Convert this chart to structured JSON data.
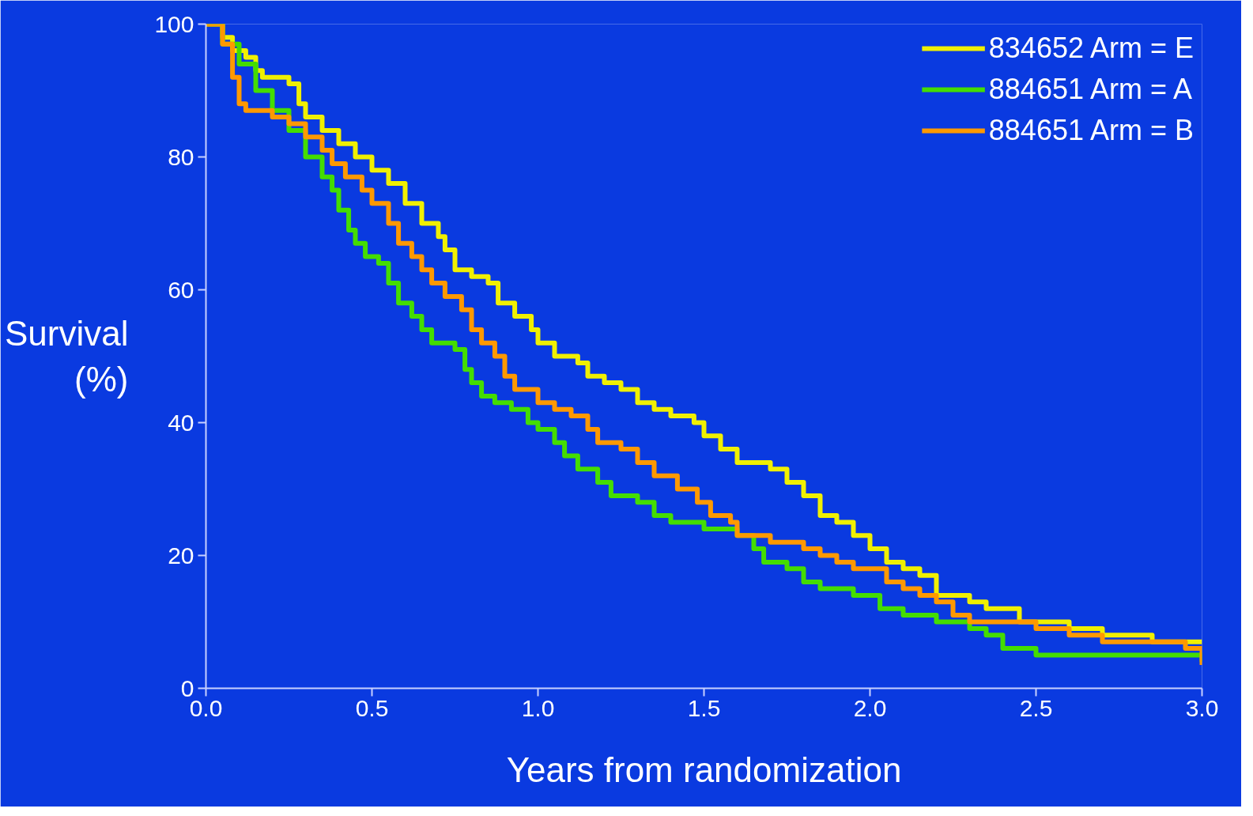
{
  "chart_data": {
    "type": "step",
    "xlabel": "Years from randomization",
    "ylabel": "Survival (%)",
    "xlim": [
      0,
      3.0
    ],
    "ylim": [
      0,
      100
    ],
    "xticks": [
      {
        "value": 0,
        "label": "0.0"
      },
      {
        "value": 0.5,
        "label": "0.5"
      },
      {
        "value": 1,
        "label": "1.0"
      },
      {
        "value": 1.5,
        "label": "1.5"
      },
      {
        "value": 2,
        "label": "2.0"
      },
      {
        "value": 2.5,
        "label": "2.5"
      },
      {
        "value": 3,
        "label": "3.0"
      }
    ],
    "yticks": [
      0,
      20,
      40,
      60,
      80,
      100
    ],
    "grid": false,
    "legend": "top right",
    "line_style": "solid",
    "marker": "none",
    "series": [
      {
        "name": "834652 Arm = E",
        "color": "#f0f000",
        "x": [
          0,
          0.05,
          0.08,
          0.12,
          0.15,
          0.17,
          0.25,
          0.28,
          0.3,
          0.35,
          0.4,
          0.45,
          0.5,
          0.55,
          0.6,
          0.65,
          0.7,
          0.72,
          0.75,
          0.8,
          0.85,
          0.88,
          0.93,
          0.98,
          1.0,
          1.05,
          1.12,
          1.15,
          1.2,
          1.25,
          1.3,
          1.35,
          1.4,
          1.47,
          1.5,
          1.55,
          1.6,
          1.7,
          1.75,
          1.8,
          1.85,
          1.9,
          1.95,
          2.0,
          2.05,
          2.1,
          2.15,
          2.2,
          2.3,
          2.35,
          2.45,
          2.6,
          2.7,
          2.85,
          3.0
        ],
        "values": [
          100,
          98,
          96,
          95,
          93,
          92,
          91,
          88,
          86,
          84,
          82,
          80,
          78,
          76,
          73,
          70,
          68,
          66,
          63,
          62,
          61,
          58,
          56,
          54,
          52,
          50,
          49,
          47,
          46,
          45,
          43,
          42,
          41,
          40,
          38,
          36,
          34,
          33,
          31,
          29,
          26,
          25,
          23,
          21,
          19,
          18,
          17,
          14,
          13,
          12,
          10,
          9,
          8,
          7,
          7
        ]
      },
      {
        "name": "884651 Arm = A",
        "color": "#44dd00",
        "x": [
          0,
          0.05,
          0.1,
          0.15,
          0.2,
          0.25,
          0.3,
          0.35,
          0.38,
          0.4,
          0.43,
          0.45,
          0.48,
          0.52,
          0.55,
          0.58,
          0.62,
          0.65,
          0.68,
          0.75,
          0.78,
          0.8,
          0.83,
          0.87,
          0.92,
          0.97,
          1.0,
          1.05,
          1.08,
          1.12,
          1.18,
          1.22,
          1.3,
          1.35,
          1.4,
          1.5,
          1.6,
          1.65,
          1.68,
          1.75,
          1.8,
          1.85,
          1.95,
          2.03,
          2.1,
          2.2,
          2.3,
          2.35,
          2.4,
          2.5,
          2.95,
          3.0
        ],
        "values": [
          100,
          97,
          94,
          90,
          87,
          84,
          80,
          77,
          75,
          72,
          69,
          67,
          65,
          64,
          61,
          58,
          56,
          54,
          52,
          51,
          48,
          46,
          44,
          43,
          42,
          40,
          39,
          37,
          35,
          33,
          31,
          29,
          28,
          26,
          25,
          24,
          23,
          21,
          19,
          18,
          16,
          15,
          14,
          12,
          11,
          10,
          9,
          8,
          6,
          5,
          5,
          4
        ]
      },
      {
        "name": "884651 Arm = B",
        "color": "#ff9900",
        "x": [
          0,
          0.05,
          0.08,
          0.1,
          0.12,
          0.2,
          0.25,
          0.3,
          0.35,
          0.38,
          0.42,
          0.47,
          0.5,
          0.55,
          0.58,
          0.62,
          0.65,
          0.68,
          0.72,
          0.77,
          0.8,
          0.83,
          0.87,
          0.9,
          0.93,
          1.0,
          1.05,
          1.1,
          1.15,
          1.18,
          1.25,
          1.3,
          1.35,
          1.42,
          1.48,
          1.52,
          1.58,
          1.6,
          1.7,
          1.8,
          1.85,
          1.9,
          1.95,
          2.05,
          2.1,
          2.15,
          2.2,
          2.25,
          2.3,
          2.5,
          2.6,
          2.7,
          2.95,
          3.0
        ],
        "values": [
          100,
          97,
          92,
          88,
          87,
          86,
          85,
          83,
          81,
          79,
          77,
          75,
          73,
          70,
          67,
          65,
          63,
          61,
          59,
          57,
          54,
          52,
          50,
          47,
          45,
          43,
          42,
          41,
          39,
          37,
          36,
          34,
          32,
          30,
          28,
          26,
          25,
          23,
          22,
          21,
          20,
          19,
          18,
          16,
          15,
          14,
          13,
          11,
          10,
          9,
          8,
          7,
          6,
          3.5
        ]
      }
    ]
  }
}
